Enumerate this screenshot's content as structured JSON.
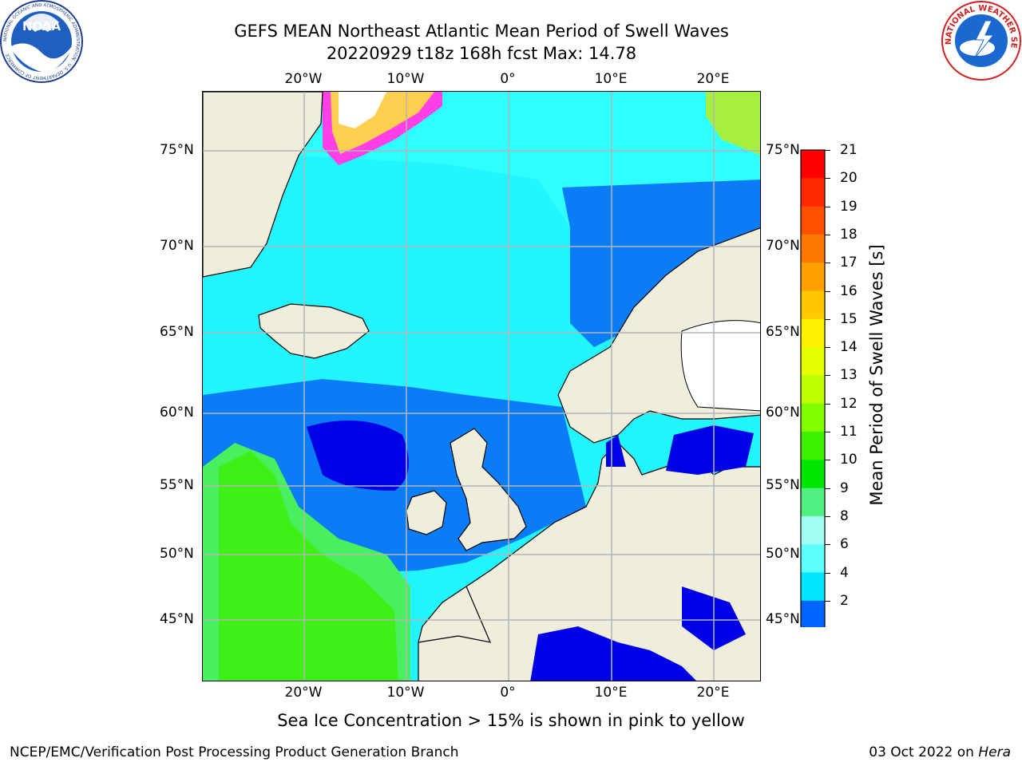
{
  "header": {
    "title_line1": "GEFS MEAN Northeast Atlantic Mean Period of Swell Waves",
    "title_line2": "20220929 t18z 168h fcst   Max: 14.78"
  },
  "logos": {
    "left": "NOAA",
    "left_ring_text": "NATIONAL OCEANIC AND ATMOSPHERIC ADMINISTRATION · U.S. DEPARTMENT OF COMMERCE",
    "right_ring_text": "NATIONAL WEATHER SERVICE"
  },
  "map": {
    "lon_labels": [
      "20°W",
      "10°W",
      "0°",
      "10°E",
      "20°E"
    ],
    "lat_labels": [
      "75°N",
      "70°N",
      "65°N",
      "60°N",
      "55°N",
      "50°N",
      "45°N"
    ],
    "colors": {
      "land": "#efeddc",
      "ocean_low": "#0a56f5",
      "ocean_mid": "#22f5ff",
      "ocean_high": "#48f060",
      "ice": "#ff40e8",
      "grid": "#b4b4b4"
    }
  },
  "colorbar": {
    "title": "Mean Period of Swell Waves [s]",
    "ticks": [
      "21",
      "20",
      "19",
      "18",
      "17",
      "16",
      "15",
      "14",
      "13",
      "12",
      "11",
      "10",
      "9",
      "8",
      "6",
      "4",
      "2"
    ],
    "colors": [
      "#fe0000",
      "#ff2800",
      "#ff5000",
      "#ff7800",
      "#ffa000",
      "#ffc800",
      "#fff000",
      "#e6ff00",
      "#beff00",
      "#80ff00",
      "#3cf000",
      "#00e600",
      "#50f080",
      "#a0fff0",
      "#60ffff",
      "#00e6ff",
      "#0064ff"
    ],
    "under_color": "#0000f0"
  },
  "note": "Sea Ice Concentration > 15% is shown in pink to yellow",
  "footer": {
    "left": "NCEP/EMC/Verification Post Processing Product Generation Branch",
    "date": "03 Oct 2022 on",
    "machine": "Hera"
  }
}
